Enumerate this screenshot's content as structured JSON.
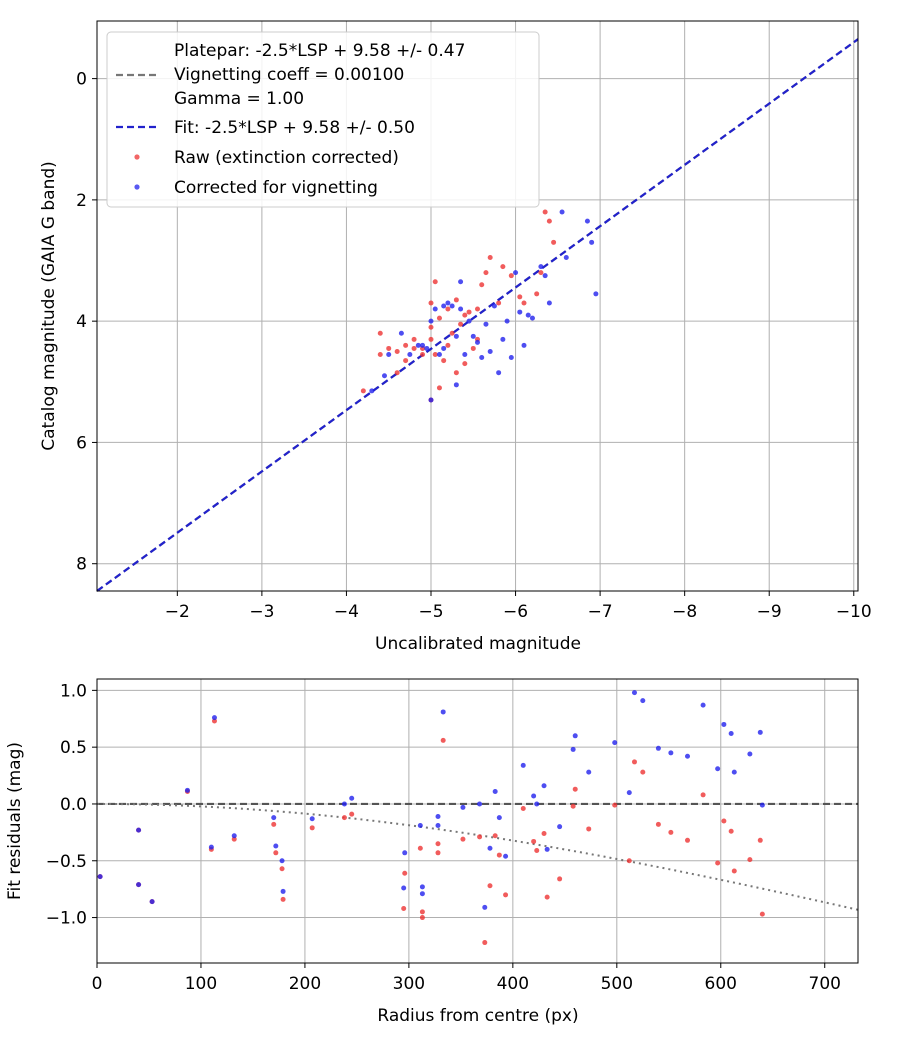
{
  "chart_data": [
    {
      "type": "scatter",
      "xlabel": "Uncalibrated magnitude",
      "ylabel": "Catalog magnitude (GAIA G band)",
      "xlim": [
        -1.05,
        -10.05
      ],
      "ylim": [
        8.45,
        -0.95
      ],
      "x_ticks": [
        -2,
        -3,
        -4,
        -5,
        -6,
        -7,
        -8,
        -9,
        -10
      ],
      "x_tick_labels": [
        "−2",
        "−3",
        "−4",
        "−5",
        "−6",
        "−7",
        "−8",
        "−9",
        "−10"
      ],
      "y_ticks": [
        0,
        2,
        4,
        6,
        8
      ],
      "y_tick_labels": [
        "0",
        "2",
        "4",
        "6",
        "8"
      ],
      "grid": true,
      "legend_position": "top-left",
      "legend": [
        "Platepar: -2.5*LSP + 9.58 +/- 0.47\nVignetting coeff = 0.00100\nGamma = 1.00",
        "Fit: -2.5*LSP + 9.58 +/- 0.50",
        "Raw (extinction corrected)",
        "Corrected for vignetting"
      ],
      "lines": [
        {
          "name": "Platepar: -2.5*LSP + 9.58 +/- 0.47",
          "color": "#777777",
          "style": "dashed",
          "x": [
            -1.05,
            -10.05
          ],
          "y": [
            8.45,
            -0.65
          ]
        },
        {
          "name": "Fit: -2.5*LSP + 9.58 +/- 0.50",
          "color": "#2222cc",
          "style": "dashed",
          "x": [
            -1.05,
            -10.05
          ],
          "y": [
            8.45,
            -0.65
          ]
        }
      ],
      "series": [
        {
          "name": "Raw (extinction corrected)",
          "color": "#ee3333",
          "points": [
            [
              -4.2,
              5.15
            ],
            [
              -4.4,
              4.2
            ],
            [
              -4.4,
              4.55
            ],
            [
              -4.5,
              4.45
            ],
            [
              -4.6,
              4.5
            ],
            [
              -4.6,
              4.85
            ],
            [
              -4.7,
              4.4
            ],
            [
              -4.7,
              4.65
            ],
            [
              -4.8,
              4.45
            ],
            [
              -4.8,
              4.3
            ],
            [
              -4.9,
              4.45
            ],
            [
              -4.9,
              4.55
            ],
            [
              -5.0,
              4.1
            ],
            [
              -5.0,
              3.7
            ],
            [
              -5.0,
              5.3
            ],
            [
              -5.0,
              4.3
            ],
            [
              -5.05,
              3.35
            ],
            [
              -5.05,
              4.55
            ],
            [
              -5.1,
              5.1
            ],
            [
              -5.1,
              3.95
            ],
            [
              -5.15,
              4.65
            ],
            [
              -5.2,
              3.8
            ],
            [
              -5.2,
              4.4
            ],
            [
              -5.25,
              4.2
            ],
            [
              -5.3,
              4.85
            ],
            [
              -5.35,
              4.05
            ],
            [
              -5.4,
              3.9
            ],
            [
              -5.4,
              4.7
            ],
            [
              -5.45,
              3.85
            ],
            [
              -5.5,
              4.45
            ],
            [
              -5.55,
              3.8
            ],
            [
              -5.55,
              4.3
            ],
            [
              -5.6,
              3.4
            ],
            [
              -5.65,
              3.2
            ],
            [
              -5.7,
              2.95
            ],
            [
              -5.8,
              3.7
            ],
            [
              -5.85,
              3.1
            ],
            [
              -5.95,
              3.25
            ],
            [
              -6.05,
              3.6
            ],
            [
              -6.1,
              3.7
            ],
            [
              -6.25,
              3.55
            ],
            [
              -6.35,
              2.2
            ],
            [
              -6.4,
              2.35
            ],
            [
              -6.45,
              2.7
            ],
            [
              -6.3,
              3.2
            ],
            [
              -5.3,
              3.65
            ]
          ]
        },
        {
          "name": "Corrected for vignetting",
          "color": "#2222ee",
          "points": [
            [
              -4.3,
              5.15
            ],
            [
              -4.45,
              4.9
            ],
            [
              -4.65,
              4.2
            ],
            [
              -4.75,
              4.55
            ],
            [
              -4.85,
              4.4
            ],
            [
              -4.9,
              4.4
            ],
            [
              -4.95,
              4.45
            ],
            [
              -5.0,
              5.3
            ],
            [
              -5.0,
              4.0
            ],
            [
              -5.05,
              3.8
            ],
            [
              -5.1,
              4.55
            ],
            [
              -5.15,
              4.45
            ],
            [
              -5.2,
              3.7
            ],
            [
              -5.25,
              3.75
            ],
            [
              -5.3,
              5.05
            ],
            [
              -5.3,
              4.25
            ],
            [
              -5.35,
              3.35
            ],
            [
              -5.35,
              3.8
            ],
            [
              -5.4,
              4.55
            ],
            [
              -5.45,
              4.0
            ],
            [
              -5.5,
              4.25
            ],
            [
              -5.55,
              4.35
            ],
            [
              -5.6,
              4.6
            ],
            [
              -5.65,
              4.05
            ],
            [
              -5.7,
              4.5
            ],
            [
              -5.75,
              3.75
            ],
            [
              -5.8,
              4.85
            ],
            [
              -5.85,
              4.3
            ],
            [
              -5.9,
              4.0
            ],
            [
              -5.95,
              4.6
            ],
            [
              -6.0,
              3.2
            ],
            [
              -6.05,
              3.85
            ],
            [
              -6.1,
              4.4
            ],
            [
              -6.15,
              3.9
            ],
            [
              -6.2,
              3.95
            ],
            [
              -6.3,
              3.1
            ],
            [
              -6.35,
              3.25
            ],
            [
              -6.4,
              3.7
            ],
            [
              -6.55,
              2.2
            ],
            [
              -6.6,
              2.95
            ],
            [
              -6.85,
              2.35
            ],
            [
              -6.9,
              2.7
            ],
            [
              -6.95,
              3.55
            ],
            [
              -4.5,
              4.55
            ],
            [
              -5.15,
              3.75
            ]
          ]
        }
      ]
    },
    {
      "type": "scatter",
      "xlabel": "Radius from centre (px)",
      "ylabel": "Fit residuals (mag)",
      "xlim": [
        0,
        732
      ],
      "ylim": [
        -1.4,
        1.1
      ],
      "x_ticks": [
        0,
        100,
        200,
        300,
        400,
        500,
        600,
        700
      ],
      "x_tick_labels": [
        "0",
        "100",
        "200",
        "300",
        "400",
        "500",
        "600",
        "700"
      ],
      "y_ticks": [
        1.0,
        0.5,
        0.0,
        -0.5,
        -1.0
      ],
      "y_tick_labels": [
        "1.0",
        "0.5",
        "0.0",
        "−0.5",
        "−1.0"
      ],
      "grid": true,
      "lines": [
        {
          "name": "zero",
          "color": "#555555",
          "style": "dashed",
          "x": [
            0,
            732
          ],
          "y": [
            0,
            0
          ]
        },
        {
          "name": "vignetting",
          "color": "#777777",
          "style": "dotted",
          "coeff": 0.001
        }
      ],
      "series": [
        {
          "name": "Raw (extinction corrected)",
          "color": "#ee3333",
          "points": [
            [
              3,
              -0.64
            ],
            [
              40,
              -0.71
            ],
            [
              40,
              -0.23
            ],
            [
              53,
              -0.86
            ],
            [
              87,
              0.11
            ],
            [
              110,
              -0.4
            ],
            [
              113,
              0.73
            ],
            [
              132,
              -0.31
            ],
            [
              170,
              -0.18
            ],
            [
              172,
              -0.43
            ],
            [
              178,
              -0.57
            ],
            [
              179,
              -0.84
            ],
            [
              207,
              -0.21
            ],
            [
              238,
              -0.12
            ],
            [
              245,
              -0.09
            ],
            [
              295,
              -0.92
            ],
            [
              296,
              -0.61
            ],
            [
              311,
              -0.39
            ],
            [
              313,
              -0.95
            ],
            [
              313,
              -1.0
            ],
            [
              328,
              -0.35
            ],
            [
              328,
              -0.43
            ],
            [
              333,
              0.56
            ],
            [
              352,
              -0.31
            ],
            [
              368,
              -0.29
            ],
            [
              373,
              -1.22
            ],
            [
              378,
              -0.72
            ],
            [
              383,
              -0.28
            ],
            [
              387,
              -0.45
            ],
            [
              393,
              -0.8
            ],
            [
              410,
              -0.04
            ],
            [
              420,
              -0.33
            ],
            [
              423,
              -0.41
            ],
            [
              430,
              -0.26
            ],
            [
              433,
              -0.82
            ],
            [
              445,
              -0.66
            ],
            [
              458,
              -0.02
            ],
            [
              460,
              0.13
            ],
            [
              473,
              -0.22
            ],
            [
              498,
              -0.01
            ],
            [
              512,
              -0.5
            ],
            [
              517,
              0.37
            ],
            [
              525,
              0.28
            ],
            [
              540,
              -0.18
            ],
            [
              552,
              -0.25
            ],
            [
              568,
              -0.32
            ],
            [
              583,
              0.08
            ],
            [
              597,
              -0.52
            ],
            [
              603,
              -0.15
            ],
            [
              610,
              -0.24
            ],
            [
              613,
              -0.59
            ],
            [
              628,
              -0.49
            ],
            [
              638,
              -0.32
            ],
            [
              640,
              -0.97
            ]
          ]
        },
        {
          "name": "Corrected for vignetting",
          "color": "#2222ee",
          "points": [
            [
              3,
              -0.64
            ],
            [
              40,
              -0.71
            ],
            [
              40,
              -0.23
            ],
            [
              53,
              -0.86
            ],
            [
              87,
              0.12
            ],
            [
              110,
              -0.38
            ],
            [
              113,
              0.76
            ],
            [
              132,
              -0.28
            ],
            [
              170,
              -0.12
            ],
            [
              172,
              -0.37
            ],
            [
              178,
              -0.5
            ],
            [
              179,
              -0.77
            ],
            [
              207,
              -0.13
            ],
            [
              238,
              0.0
            ],
            [
              245,
              0.05
            ],
            [
              295,
              -0.74
            ],
            [
              296,
              -0.43
            ],
            [
              311,
              -0.19
            ],
            [
              313,
              -0.73
            ],
            [
              313,
              -0.79
            ],
            [
              328,
              -0.11
            ],
            [
              328,
              -0.19
            ],
            [
              333,
              0.81
            ],
            [
              352,
              -0.03
            ],
            [
              368,
              0.0
            ],
            [
              373,
              -0.91
            ],
            [
              378,
              -0.39
            ],
            [
              383,
              0.11
            ],
            [
              387,
              -0.12
            ],
            [
              393,
              -0.46
            ],
            [
              410,
              0.34
            ],
            [
              420,
              0.07
            ],
            [
              423,
              0.0
            ],
            [
              430,
              0.16
            ],
            [
              433,
              -0.4
            ],
            [
              445,
              -0.2
            ],
            [
              458,
              0.48
            ],
            [
              460,
              0.6
            ],
            [
              473,
              0.28
            ],
            [
              498,
              0.54
            ],
            [
              512,
              0.1
            ],
            [
              517,
              0.98
            ],
            [
              525,
              0.91
            ],
            [
              540,
              0.49
            ],
            [
              552,
              0.45
            ],
            [
              568,
              0.42
            ],
            [
              583,
              0.87
            ],
            [
              597,
              0.31
            ],
            [
              603,
              0.7
            ],
            [
              610,
              0.62
            ],
            [
              613,
              0.28
            ],
            [
              628,
              0.44
            ],
            [
              638,
              0.63
            ],
            [
              640,
              -0.01
            ]
          ]
        }
      ]
    }
  ]
}
